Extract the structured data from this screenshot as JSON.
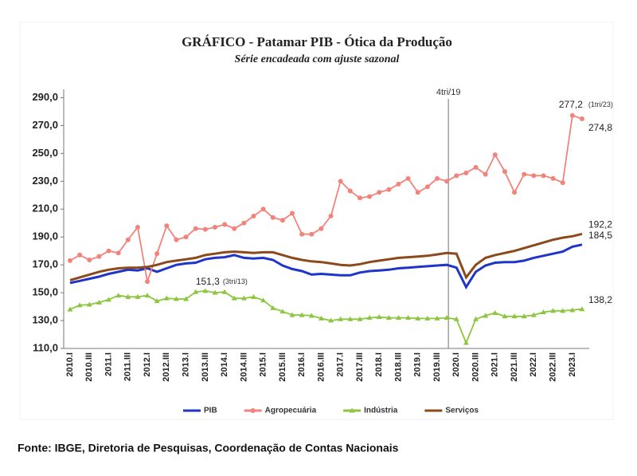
{
  "chart_data": {
    "type": "line",
    "title": "GRÁFICO - Patamar PIB - Ótica da Produção",
    "subtitle": "Série encadeada com ajuste sazonal",
    "source": "Fonte: IBGE, Diretoria de Pesquisas, Coordenação de Contas Nacionais",
    "annotations": [
      "4tri/19",
      "(1tri/23)",
      "(3tri/13)"
    ],
    "categories": [
      "2010.I",
      null,
      "2010.III",
      null,
      "2011.I",
      null,
      "2011.III",
      null,
      "2012.I",
      null,
      "2012.III",
      null,
      "2013.I",
      null,
      "2013.III",
      null,
      "2014.I",
      null,
      "2014.III",
      null,
      "2015.I",
      null,
      "2015.III",
      null,
      "2016.I",
      null,
      "2016.III",
      null,
      "2017.I",
      null,
      "2017.III",
      null,
      "2018.I",
      null,
      "2018.III",
      null,
      "2019.I",
      null,
      "2019.III",
      null,
      "2020.I",
      null,
      "2020.III",
      null,
      "2021.I",
      null,
      "2021.III",
      null,
      "2022.I",
      null,
      "2022.III",
      null,
      "2023.I",
      null
    ],
    "ylim": [
      110,
      296
    ],
    "yticks": [
      {
        "value": 110,
        "label": "110,0"
      },
      {
        "value": 130,
        "label": "130,0"
      },
      {
        "value": 150,
        "label": "150,0"
      },
      {
        "value": 170,
        "label": "170,0"
      },
      {
        "value": 190,
        "label": "190,0"
      },
      {
        "value": 210,
        "label": "210,0"
      },
      {
        "value": 230,
        "label": "230,0"
      },
      {
        "value": 250,
        "label": "250,0"
      },
      {
        "value": 270,
        "label": "270,0"
      },
      {
        "value": 290,
        "label": "290,0"
      }
    ],
    "series": [
      {
        "name": "PIB",
        "color": "#1f35c8",
        "marker": "none",
        "values": [
          157,
          158.5,
          160,
          161.5,
          163.5,
          165,
          166.5,
          166,
          167.5,
          165,
          167.5,
          170,
          171,
          171.5,
          174,
          175,
          175.5,
          177,
          175,
          174.5,
          175,
          173.5,
          169.5,
          167,
          165.5,
          163,
          163.5,
          163,
          162.5,
          162.5,
          164.5,
          165.5,
          166,
          166.5,
          167.5,
          168,
          168.5,
          169,
          169.5,
          170,
          168,
          154,
          165,
          169.5,
          171.5,
          172,
          172,
          173,
          175,
          176.5,
          178,
          179.5,
          183,
          184.5
        ],
        "value_labels": [
          null,
          null,
          null,
          null,
          null,
          null,
          null,
          null,
          null,
          null,
          null,
          null,
          null,
          null,
          null,
          null,
          null,
          null,
          null,
          null,
          null,
          null,
          null,
          null,
          null,
          null,
          null,
          null,
          null,
          null,
          null,
          null,
          null,
          null,
          null,
          null,
          null,
          null,
          null,
          null,
          null,
          null,
          null,
          null,
          null,
          null,
          null,
          null,
          null,
          null,
          null,
          null,
          null,
          "184,5"
        ]
      },
      {
        "name": "Agropecuária",
        "color": "#f2837c",
        "marker": "circle",
        "values": [
          173,
          177,
          173.5,
          176,
          180,
          178.5,
          188,
          197,
          158,
          178,
          198,
          188,
          190,
          196,
          195.5,
          197,
          199,
          196,
          200,
          205,
          210,
          204,
          202,
          207,
          192,
          192,
          196,
          205,
          230,
          223,
          218,
          219,
          222,
          224,
          228,
          232,
          222,
          226,
          232,
          230,
          234,
          236,
          240,
          235,
          249,
          237,
          222,
          235,
          234,
          234,
          232,
          229,
          277.2,
          274.8
        ],
        "value_labels": [
          null,
          null,
          null,
          null,
          null,
          null,
          null,
          null,
          null,
          null,
          null,
          null,
          null,
          null,
          null,
          null,
          null,
          null,
          null,
          null,
          null,
          null,
          null,
          null,
          null,
          null,
          null,
          null,
          null,
          null,
          null,
          null,
          null,
          null,
          null,
          null,
          null,
          null,
          null,
          null,
          null,
          null,
          null,
          null,
          null,
          null,
          null,
          null,
          null,
          null,
          null,
          null,
          "277,2",
          "274,8"
        ]
      },
      {
        "name": "Indústria",
        "color": "#8cc63e",
        "marker": "triangle",
        "values": [
          138,
          141,
          141.5,
          143,
          145,
          148,
          147,
          147,
          148,
          144,
          146,
          145.5,
          145.5,
          150.5,
          151.3,
          150,
          150.5,
          146,
          146,
          147,
          144.5,
          139,
          136.5,
          134,
          134,
          133.5,
          131.5,
          130,
          131,
          131,
          131,
          132,
          132.5,
          132,
          132,
          132,
          131.5,
          131.5,
          131.5,
          132,
          131,
          114,
          131,
          133.5,
          135.5,
          133,
          133,
          133,
          134,
          136,
          137,
          137,
          137.5,
          138.2
        ],
        "value_labels": [
          null,
          null,
          null,
          null,
          null,
          null,
          null,
          null,
          null,
          null,
          null,
          null,
          null,
          null,
          "151,3",
          null,
          null,
          null,
          null,
          null,
          null,
          null,
          null,
          null,
          null,
          null,
          null,
          null,
          null,
          null,
          null,
          null,
          null,
          null,
          null,
          null,
          null,
          null,
          null,
          null,
          null,
          null,
          null,
          null,
          null,
          null,
          null,
          null,
          null,
          null,
          null,
          null,
          null,
          "138,2"
        ]
      },
      {
        "name": "Serviços",
        "color": "#8b4a1c",
        "marker": "none",
        "values": [
          159,
          161,
          163,
          165,
          166.5,
          167.5,
          168,
          168,
          168.5,
          170,
          172,
          173,
          174,
          175,
          177,
          178,
          179,
          179.5,
          179,
          178.5,
          179,
          179,
          177,
          175,
          173.5,
          172.5,
          172,
          171,
          170,
          169.5,
          170.5,
          172,
          173,
          174,
          175,
          175.5,
          176,
          176.5,
          177.5,
          178.5,
          178,
          161,
          170,
          175,
          177,
          178.5,
          180,
          182,
          184,
          186,
          188,
          189.5,
          190.5,
          192.2
        ],
        "value_labels": [
          null,
          null,
          null,
          null,
          null,
          null,
          null,
          null,
          null,
          null,
          null,
          null,
          null,
          null,
          null,
          null,
          null,
          null,
          null,
          null,
          null,
          null,
          null,
          null,
          null,
          null,
          null,
          null,
          null,
          null,
          null,
          null,
          null,
          null,
          null,
          null,
          null,
          null,
          null,
          null,
          null,
          null,
          null,
          null,
          null,
          null,
          null,
          null,
          null,
          null,
          null,
          null,
          null,
          "192,2"
        ]
      }
    ]
  }
}
